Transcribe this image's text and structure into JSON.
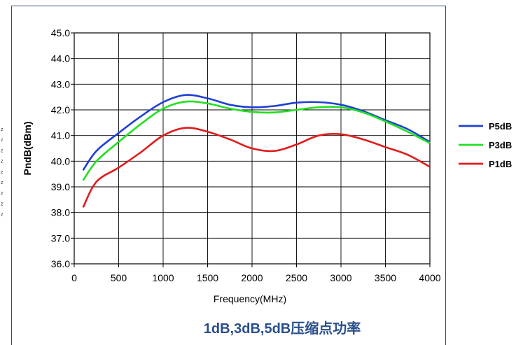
{
  "chart_data": {
    "type": "line",
    "title": "1dB,3dB,5dB压缩点功率",
    "xlabel": "Frequency(MHz)",
    "ylabel": "PndB(dBm)",
    "xlim": [
      0,
      4000
    ],
    "ylim": [
      36.0,
      45.0
    ],
    "x_ticks": [
      "0",
      "500",
      "1000",
      "1500",
      "2000",
      "2500",
      "3000",
      "3500",
      "4000"
    ],
    "y_ticks": [
      "36.0",
      "37.0",
      "38.0",
      "39.0",
      "40.0",
      "41.0",
      "42.0",
      "43.0",
      "44.0",
      "45.0"
    ],
    "grid": true,
    "legend_position": "right",
    "x": [
      100,
      250,
      500,
      750,
      1000,
      1250,
      1500,
      1750,
      2000,
      2250,
      2500,
      2750,
      3000,
      3250,
      3500,
      3750,
      4000
    ],
    "series": [
      {
        "name": "P5dB",
        "color": "#1f3fd6",
        "values": [
          39.65,
          40.4,
          41.1,
          41.75,
          42.3,
          42.58,
          42.45,
          42.2,
          42.1,
          42.15,
          42.28,
          42.3,
          42.2,
          41.95,
          41.6,
          41.25,
          40.75
        ]
      },
      {
        "name": "P3dB",
        "color": "#22e022",
        "values": [
          39.25,
          40.0,
          40.75,
          41.45,
          42.05,
          42.32,
          42.25,
          42.05,
          41.92,
          41.9,
          42.0,
          42.1,
          42.1,
          41.9,
          41.55,
          41.15,
          40.7
        ]
      },
      {
        "name": "P1dB",
        "color": "#e01c1c",
        "values": [
          38.2,
          39.2,
          39.75,
          40.35,
          41.0,
          41.3,
          41.15,
          40.85,
          40.5,
          40.4,
          40.65,
          41.0,
          41.05,
          40.85,
          40.55,
          40.25,
          39.78
        ]
      }
    ]
  },
  "side_marks": [
    "z",
    "z",
    "z",
    "z",
    "z",
    "z",
    "z",
    "z",
    "z"
  ]
}
